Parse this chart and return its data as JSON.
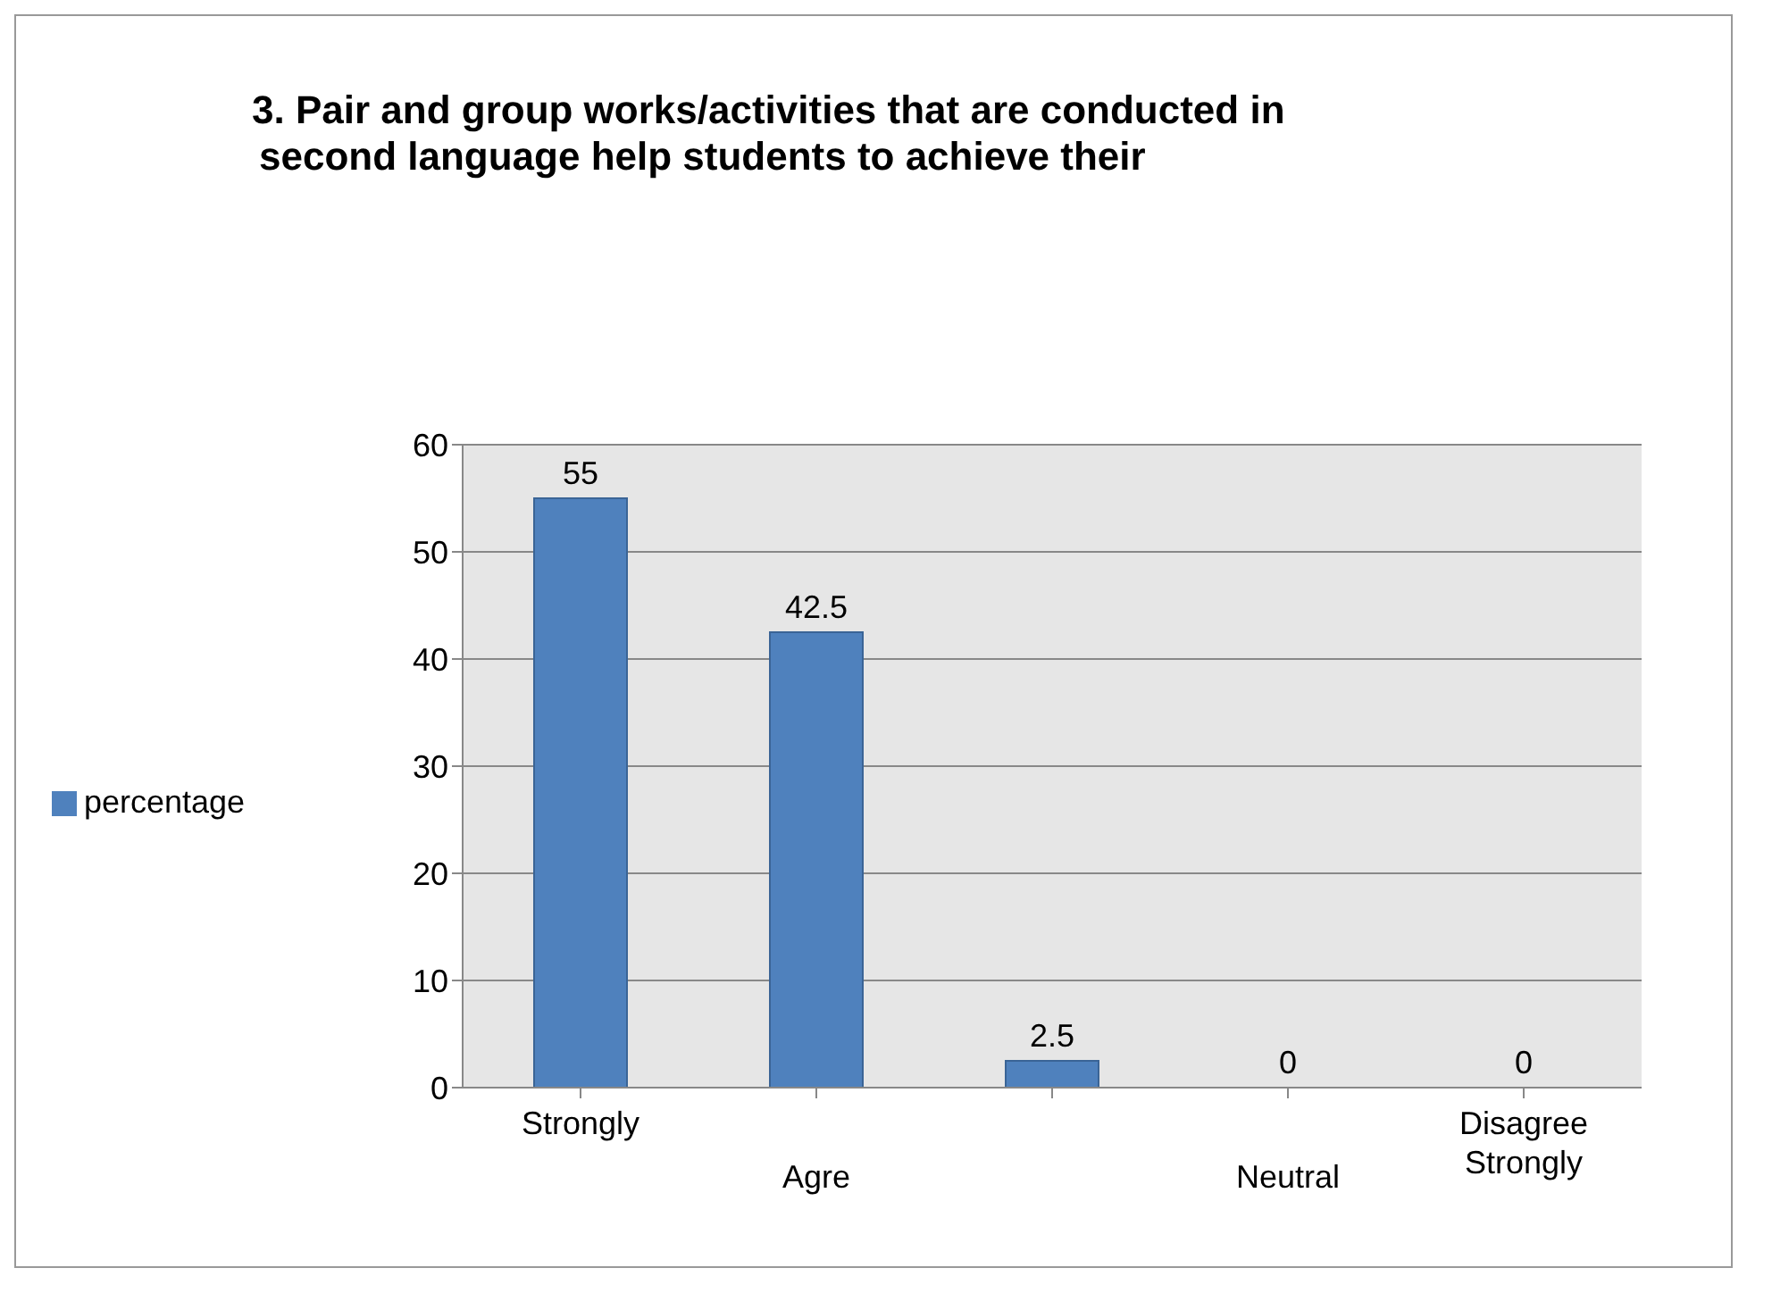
{
  "chart_data": {
    "type": "bar",
    "title": "3. Pair and group works/activities that are conducted in\nsecond language help students to achieve their",
    "categories": [
      "Strongly",
      "Agre",
      null,
      "Neutral",
      "Disagree Strongly"
    ],
    "series": [
      {
        "name": "percentage",
        "color": "#4f81bd",
        "values": [
          55,
          42.5,
          2.5,
          0,
          0
        ]
      }
    ],
    "ylim": [
      0,
      60
    ],
    "yticks": [
      0,
      10,
      20,
      30,
      40,
      50,
      60
    ],
    "grid": "y",
    "legend": "left",
    "data_labels": true
  }
}
